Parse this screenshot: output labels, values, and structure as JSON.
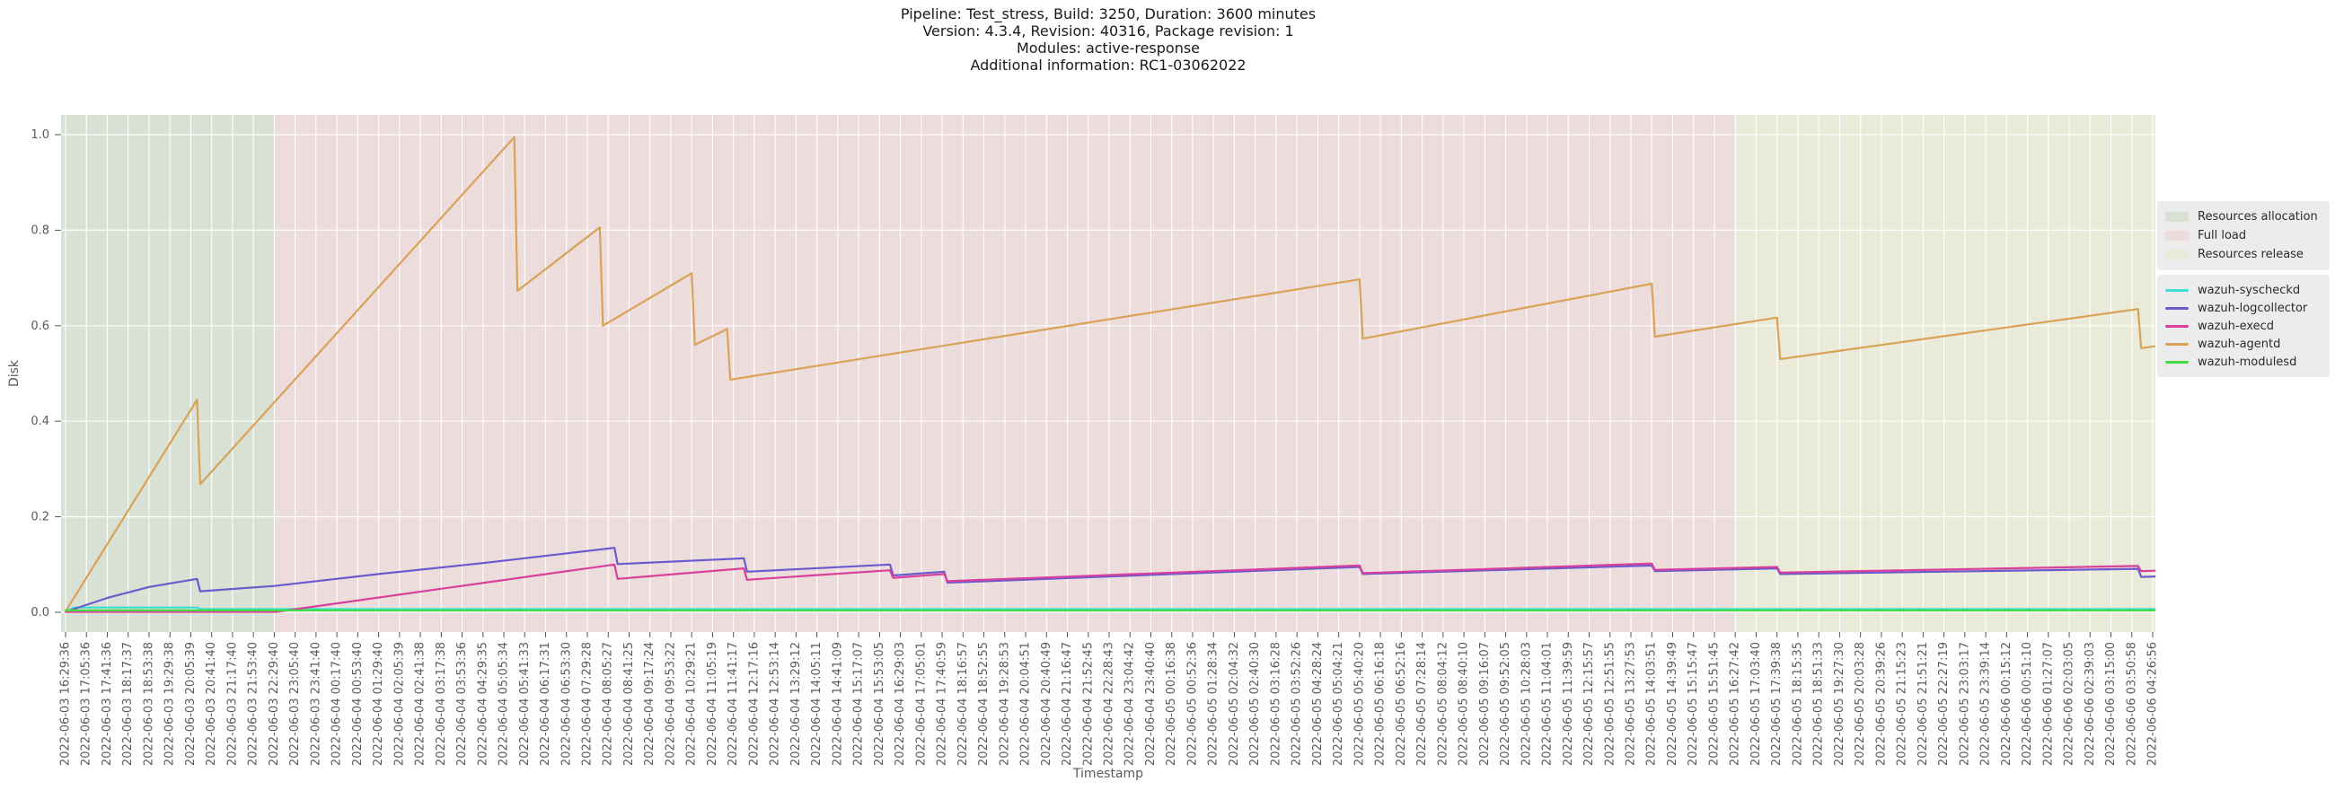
{
  "title_lines": [
    "Pipeline: Test_stress, Build: 3250, Duration: 3600 minutes",
    "Version: 4.3.4, Revision: 40316, Package revision: 1",
    "Modules: active-response",
    "Additional information: RC1-03062022"
  ],
  "chart_data": {
    "type": "line",
    "title": "Pipeline: Test_stress, Build: 3250, Duration: 3600 minutes | Version: 4.3.4, Revision: 40316, Package revision: 1 | Modules: active-response | Additional information: RC1-03062022",
    "xlabel": "Timestamp",
    "ylabel": "Disk",
    "ylim": [
      -0.045,
      1.045
    ],
    "grid": true,
    "legend_position": "right-outside",
    "yticks": [
      "0.0",
      "0.2",
      "0.4",
      "0.6",
      "0.8",
      "1.0"
    ],
    "x_ticks": [
      "2022-06-03 16:29:36",
      "2022-06-03 17:05:36",
      "2022-06-03 17:41:36",
      "2022-06-03 18:17:37",
      "2022-06-03 18:53:38",
      "2022-06-03 19:29:38",
      "2022-06-03 20:05:39",
      "2022-06-03 20:41:40",
      "2022-06-03 21:17:40",
      "2022-06-03 21:53:40",
      "2022-06-03 22:29:40",
      "2022-06-03 23:05:40",
      "2022-06-03 23:41:40",
      "2022-06-04 00:17:40",
      "2022-06-04 00:53:40",
      "2022-06-04 01:29:40",
      "2022-06-04 02:05:39",
      "2022-06-04 02:41:38",
      "2022-06-04 03:17:38",
      "2022-06-04 03:53:36",
      "2022-06-04 04:29:35",
      "2022-06-04 05:05:34",
      "2022-06-04 05:41:33",
      "2022-06-04 06:17:31",
      "2022-06-04 06:53:30",
      "2022-06-04 07:29:28",
      "2022-06-04 08:05:27",
      "2022-06-04 08:41:25",
      "2022-06-04 09:17:24",
      "2022-06-04 09:53:22",
      "2022-06-04 10:29:21",
      "2022-06-04 11:05:19",
      "2022-06-04 11:41:17",
      "2022-06-04 12:17:16",
      "2022-06-04 12:53:14",
      "2022-06-04 13:29:12",
      "2022-06-04 14:05:11",
      "2022-06-04 14:41:09",
      "2022-06-04 15:17:07",
      "2022-06-04 15:53:05",
      "2022-06-04 16:29:03",
      "2022-06-04 17:05:01",
      "2022-06-04 17:40:59",
      "2022-06-04 18:16:57",
      "2022-06-04 18:52:55",
      "2022-06-04 19:28:53",
      "2022-06-04 20:04:51",
      "2022-06-04 20:40:49",
      "2022-06-04 21:16:47",
      "2022-06-04 21:52:45",
      "2022-06-04 22:28:43",
      "2022-06-04 23:04:42",
      "2022-06-04 23:40:40",
      "2022-06-05 00:16:38",
      "2022-06-05 00:52:36",
      "2022-06-05 01:28:34",
      "2022-06-05 02:04:32",
      "2022-06-05 02:40:30",
      "2022-06-05 03:16:28",
      "2022-06-05 03:52:26",
      "2022-06-05 04:28:24",
      "2022-06-05 05:04:21",
      "2022-06-05 05:40:20",
      "2022-06-05 06:16:18",
      "2022-06-05 06:52:16",
      "2022-06-05 07:28:14",
      "2022-06-05 08:04:12",
      "2022-06-05 08:40:10",
      "2022-06-05 09:16:07",
      "2022-06-05 09:52:05",
      "2022-06-05 10:28:03",
      "2022-06-05 11:04:01",
      "2022-06-05 11:39:59",
      "2022-06-05 12:15:57",
      "2022-06-05 12:51:55",
      "2022-06-05 13:27:53",
      "2022-06-05 14:03:51",
      "2022-06-05 14:39:49",
      "2022-06-05 15:15:47",
      "2022-06-05 15:51:45",
      "2022-06-05 16:27:42",
      "2022-06-05 17:03:40",
      "2022-06-05 17:39:38",
      "2022-06-05 18:15:35",
      "2022-06-05 18:51:33",
      "2022-06-05 19:27:30",
      "2022-06-05 20:03:28",
      "2022-06-05 20:39:26",
      "2022-06-05 21:15:23",
      "2022-06-05 21:51:21",
      "2022-06-05 22:27:19",
      "2022-06-05 23:03:17",
      "2022-06-05 23:39:14",
      "2022-06-06 00:15:12",
      "2022-06-06 00:51:10",
      "2022-06-06 01:27:07",
      "2022-06-06 02:03:05",
      "2022-06-06 02:39:03",
      "2022-06-06 03:15:00",
      "2022-06-06 03:50:58",
      "2022-06-06 04:26:56"
    ],
    "regions": [
      {
        "label": "Resources allocation",
        "start_tick": 0,
        "end_tick": 10,
        "color": "#d9e0d4"
      },
      {
        "label": "Full load",
        "start_tick": 10,
        "end_tick": 80,
        "color": "#ecdcdb"
      },
      {
        "label": "Resources release",
        "start_tick": 80,
        "end_tick": 100,
        "color": "#e9ebd8"
      }
    ],
    "series": [
      {
        "name": "wazuh-syscheckd",
        "color": "#40e0d0",
        "points": [
          [
            0,
            0.001
          ],
          [
            0.4,
            0.01
          ],
          [
            6.3,
            0.01
          ],
          [
            6.45,
            0.007
          ],
          [
            100.1,
            0.007
          ]
        ]
      },
      {
        "name": "wazuh-logcollector",
        "color": "#6a5acd",
        "points": [
          [
            0,
            0.001
          ],
          [
            2,
            0.03
          ],
          [
            4,
            0.053
          ],
          [
            6.3,
            0.07
          ],
          [
            6.45,
            0.044
          ],
          [
            10,
            0.055
          ],
          [
            15,
            0.08
          ],
          [
            20,
            0.103
          ],
          [
            26.3,
            0.135
          ],
          [
            26.45,
            0.101
          ],
          [
            32.5,
            0.113
          ],
          [
            32.65,
            0.085
          ],
          [
            39.5,
            0.1
          ],
          [
            39.65,
            0.077
          ],
          [
            42.1,
            0.085
          ],
          [
            42.25,
            0.062
          ],
          [
            62,
            0.095
          ],
          [
            62.15,
            0.08
          ],
          [
            76,
            0.098
          ],
          [
            76.15,
            0.086
          ],
          [
            82,
            0.092
          ],
          [
            82.15,
            0.08
          ],
          [
            99.3,
            0.091
          ],
          [
            99.45,
            0.074
          ],
          [
            100.1,
            0.075
          ]
        ]
      },
      {
        "name": "wazuh-execd",
        "color": "#d93f9b",
        "points": [
          [
            0,
            0.001
          ],
          [
            10.1,
            0.001
          ],
          [
            26.3,
            0.1
          ],
          [
            26.45,
            0.07
          ],
          [
            32.5,
            0.092
          ],
          [
            32.65,
            0.068
          ],
          [
            39.5,
            0.088
          ],
          [
            39.65,
            0.072
          ],
          [
            42.1,
            0.08
          ],
          [
            42.25,
            0.065
          ],
          [
            62,
            0.098
          ],
          [
            62.15,
            0.082
          ],
          [
            76,
            0.102
          ],
          [
            76.15,
            0.089
          ],
          [
            82,
            0.095
          ],
          [
            82.15,
            0.083
          ],
          [
            99.3,
            0.097
          ],
          [
            99.45,
            0.086
          ],
          [
            100.1,
            0.087
          ]
        ]
      },
      {
        "name": "wazuh-agentd",
        "color": "#d9a257",
        "points": [
          [
            0,
            0.002
          ],
          [
            6.3,
            0.445
          ],
          [
            6.45,
            0.268
          ],
          [
            21.5,
            0.995
          ],
          [
            21.65,
            0.673
          ],
          [
            25.6,
            0.806
          ],
          [
            25.75,
            0.6
          ],
          [
            30.0,
            0.71
          ],
          [
            30.15,
            0.56
          ],
          [
            31.7,
            0.593
          ],
          [
            31.85,
            0.487
          ],
          [
            62.0,
            0.697
          ],
          [
            62.15,
            0.573
          ],
          [
            76.0,
            0.688
          ],
          [
            76.15,
            0.577
          ],
          [
            82.0,
            0.617
          ],
          [
            82.15,
            0.53
          ],
          [
            99.3,
            0.635
          ],
          [
            99.45,
            0.553
          ],
          [
            100.1,
            0.557
          ]
        ]
      },
      {
        "name": "wazuh-modulesd",
        "color": "#43dd43",
        "points": [
          [
            0,
            0.004
          ],
          [
            100.1,
            0.004
          ]
        ]
      }
    ]
  }
}
